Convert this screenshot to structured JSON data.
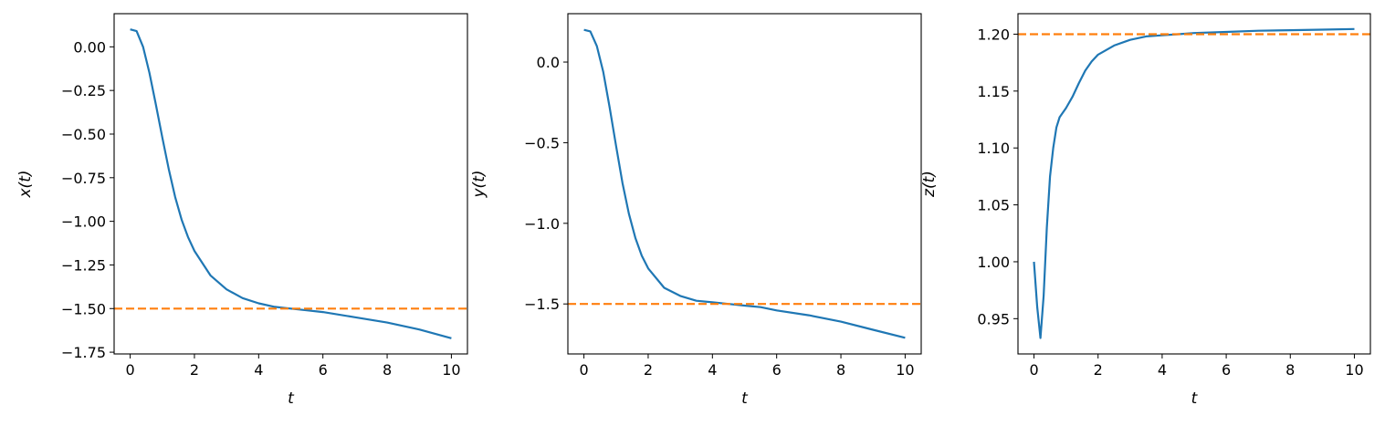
{
  "chart_data": [
    {
      "type": "line",
      "xlabel": "t",
      "ylabel": "x(t)",
      "xlim": [
        -0.5,
        10.5
      ],
      "ylim": [
        -1.76,
        0.19
      ],
      "xticks": [
        0,
        2,
        4,
        6,
        8,
        10
      ],
      "yticks": [
        0.0,
        -0.25,
        -0.5,
        -0.75,
        -1.0,
        -1.25,
        -1.5,
        -1.75
      ],
      "ytick_labels": [
        "0.00",
        "−0.25",
        "−0.50",
        "−0.75",
        "−1.00",
        "−1.25",
        "−1.50",
        "−1.75"
      ],
      "grid": false,
      "series": [
        {
          "color": "#1f77b4",
          "style": "solid",
          "x": [
            0,
            0.2,
            0.4,
            0.6,
            0.8,
            1.0,
            1.2,
            1.4,
            1.6,
            1.8,
            2.0,
            2.5,
            3.0,
            3.5,
            4.0,
            4.5,
            5.0,
            5.5,
            6.0,
            7.0,
            8.0,
            9.0,
            10.0
          ],
          "y": [
            0.1,
            0.09,
            0.0,
            -0.15,
            -0.33,
            -0.52,
            -0.7,
            -0.86,
            -0.99,
            -1.09,
            -1.17,
            -1.31,
            -1.39,
            -1.44,
            -1.47,
            -1.49,
            -1.5,
            -1.51,
            -1.52,
            -1.55,
            -1.58,
            -1.62,
            -1.67
          ]
        },
        {
          "color": "#ff7f0e",
          "style": "dashed",
          "x": [
            -0.5,
            10.5
          ],
          "y": [
            -1.5,
            -1.5
          ]
        }
      ]
    },
    {
      "type": "line",
      "xlabel": "t",
      "ylabel": "y(t)",
      "xlim": [
        -0.5,
        10.5
      ],
      "ylim": [
        -1.81,
        0.3
      ],
      "xticks": [
        0,
        2,
        4,
        6,
        8,
        10
      ],
      "yticks": [
        0.0,
        -0.5,
        -1.0,
        -1.5
      ],
      "ytick_labels": [
        "0.0",
        "−0.5",
        "−1.0",
        "−1.5"
      ],
      "grid": false,
      "series": [
        {
          "color": "#1f77b4",
          "style": "solid",
          "x": [
            0,
            0.2,
            0.4,
            0.6,
            0.8,
            1.0,
            1.2,
            1.4,
            1.6,
            1.8,
            2.0,
            2.5,
            3.0,
            3.5,
            4.0,
            4.5,
            5.0,
            5.5,
            6.0,
            7.0,
            8.0,
            9.0,
            10.0
          ],
          "y": [
            0.2,
            0.19,
            0.1,
            -0.06,
            -0.28,
            -0.52,
            -0.75,
            -0.94,
            -1.09,
            -1.2,
            -1.28,
            -1.4,
            -1.45,
            -1.48,
            -1.49,
            -1.5,
            -1.51,
            -1.52,
            -1.54,
            -1.57,
            -1.61,
            -1.66,
            -1.71
          ]
        },
        {
          "color": "#ff7f0e",
          "style": "dashed",
          "x": [
            -0.5,
            10.5
          ],
          "y": [
            -1.5,
            -1.5
          ]
        }
      ]
    },
    {
      "type": "line",
      "xlabel": "t",
      "ylabel": "z(t)",
      "xlim": [
        -0.5,
        10.5
      ],
      "ylim": [
        0.919,
        1.218
      ],
      "xticks": [
        0,
        2,
        4,
        6,
        8,
        10
      ],
      "yticks": [
        0.95,
        1.0,
        1.05,
        1.1,
        1.15,
        1.2
      ],
      "ytick_labels": [
        "0.95",
        "1.00",
        "1.05",
        "1.10",
        "1.15",
        "1.20"
      ],
      "grid": false,
      "series": [
        {
          "color": "#1f77b4",
          "style": "solid",
          "x": [
            0,
            0.1,
            0.2,
            0.3,
            0.4,
            0.5,
            0.6,
            0.7,
            0.8,
            0.9,
            1.0,
            1.2,
            1.4,
            1.6,
            1.8,
            2.0,
            2.5,
            3.0,
            3.5,
            4.0,
            4.5,
            5.0,
            6.0,
            7.0,
            8.0,
            9.0,
            10.0
          ],
          "y": [
            1.0,
            0.96,
            0.933,
            0.97,
            1.03,
            1.075,
            1.1,
            1.118,
            1.127,
            1.131,
            1.135,
            1.145,
            1.157,
            1.168,
            1.176,
            1.182,
            1.19,
            1.195,
            1.198,
            1.199,
            1.2,
            1.201,
            1.202,
            1.203,
            1.2035,
            1.204,
            1.2045
          ]
        },
        {
          "color": "#ff7f0e",
          "style": "dashed",
          "x": [
            -0.5,
            10.5
          ],
          "y": [
            1.2,
            1.2
          ]
        }
      ]
    }
  ]
}
